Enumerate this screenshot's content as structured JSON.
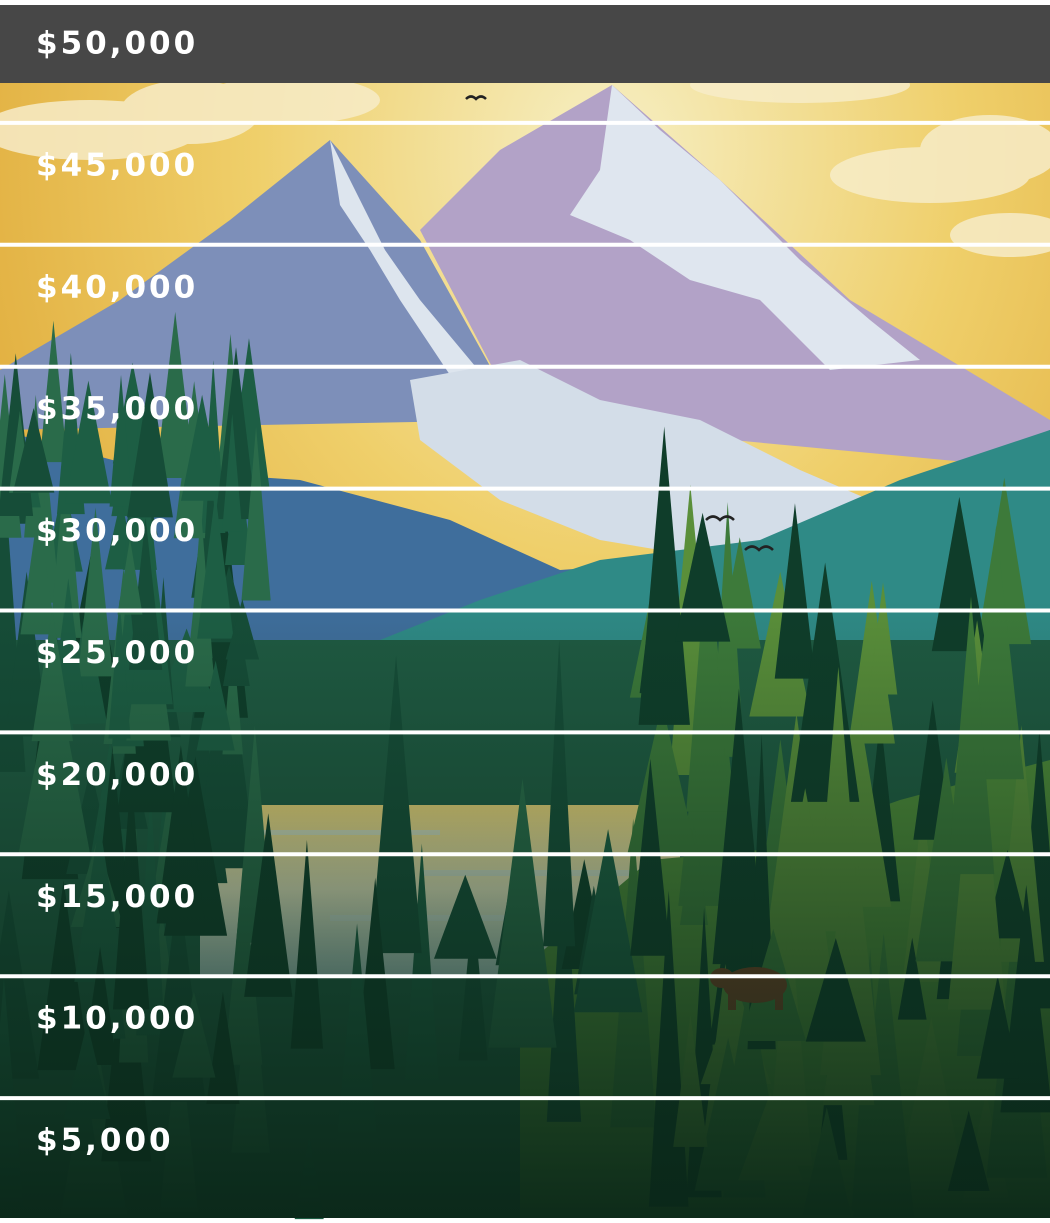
{
  "levels": [
    "$50,000",
    "$45,000",
    "$40,000",
    "$35,000",
    "$30,000",
    "$25,000",
    "$20,000",
    "$15,000",
    "$10,000",
    "$5,000"
  ]
}
